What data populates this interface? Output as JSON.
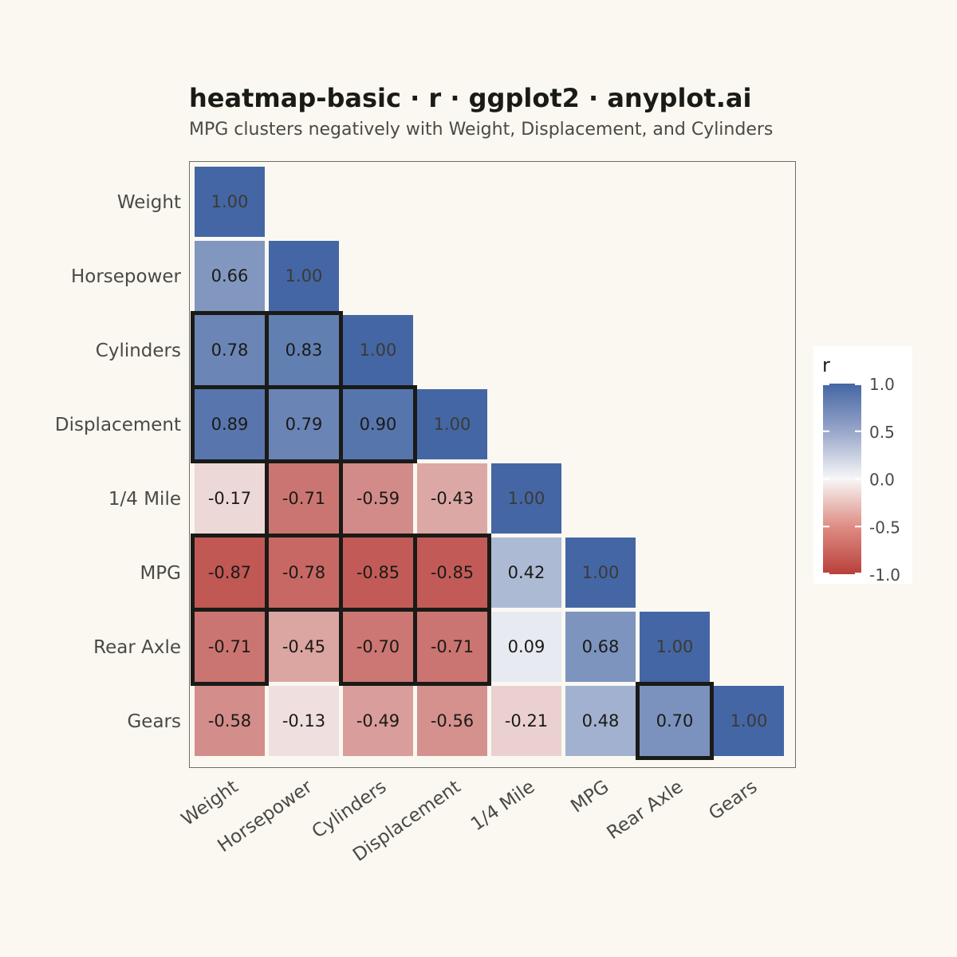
{
  "chart_data": {
    "type": "heatmap",
    "title": "heatmap-basic · r · ggplot2 · anyplot.ai",
    "subtitle": "MPG clusters negatively with Weight, Displacement, and Cylinders",
    "variables": [
      "Weight",
      "Horsepower",
      "Cylinders",
      "Displacement",
      "1/4 Mile",
      "MPG",
      "Rear Axle",
      "Gears"
    ],
    "matrix": [
      [
        1.0
      ],
      [
        0.66,
        1.0
      ],
      [
        0.78,
        0.83,
        1.0
      ],
      [
        0.89,
        0.79,
        0.9,
        1.0
      ],
      [
        -0.17,
        -0.71,
        -0.59,
        -0.43,
        1.0
      ],
      [
        -0.87,
        -0.78,
        -0.85,
        -0.85,
        0.42,
        1.0
      ],
      [
        -0.71,
        -0.45,
        -0.7,
        -0.71,
        0.09,
        0.68,
        1.0
      ],
      [
        -0.58,
        -0.13,
        -0.49,
        -0.56,
        -0.21,
        0.48,
        0.7,
        1.0
      ]
    ],
    "highlight_threshold": 0.7,
    "value_range": [
      -1.0,
      1.0
    ],
    "legend": {
      "title": "r",
      "placement": "right",
      "ticks": [
        1.0,
        0.5,
        0.0,
        -0.5,
        -1.0
      ],
      "tick_labels": [
        "1.0",
        "0.5",
        "0.0",
        "-0.5",
        "-1.0"
      ]
    },
    "colors": {
      "negative": "#B9403B",
      "neutral": "#F7F7F7",
      "positive": "#4466A4",
      "highlight_border": "#1A1A17",
      "background": "#FAF8F1"
    }
  }
}
